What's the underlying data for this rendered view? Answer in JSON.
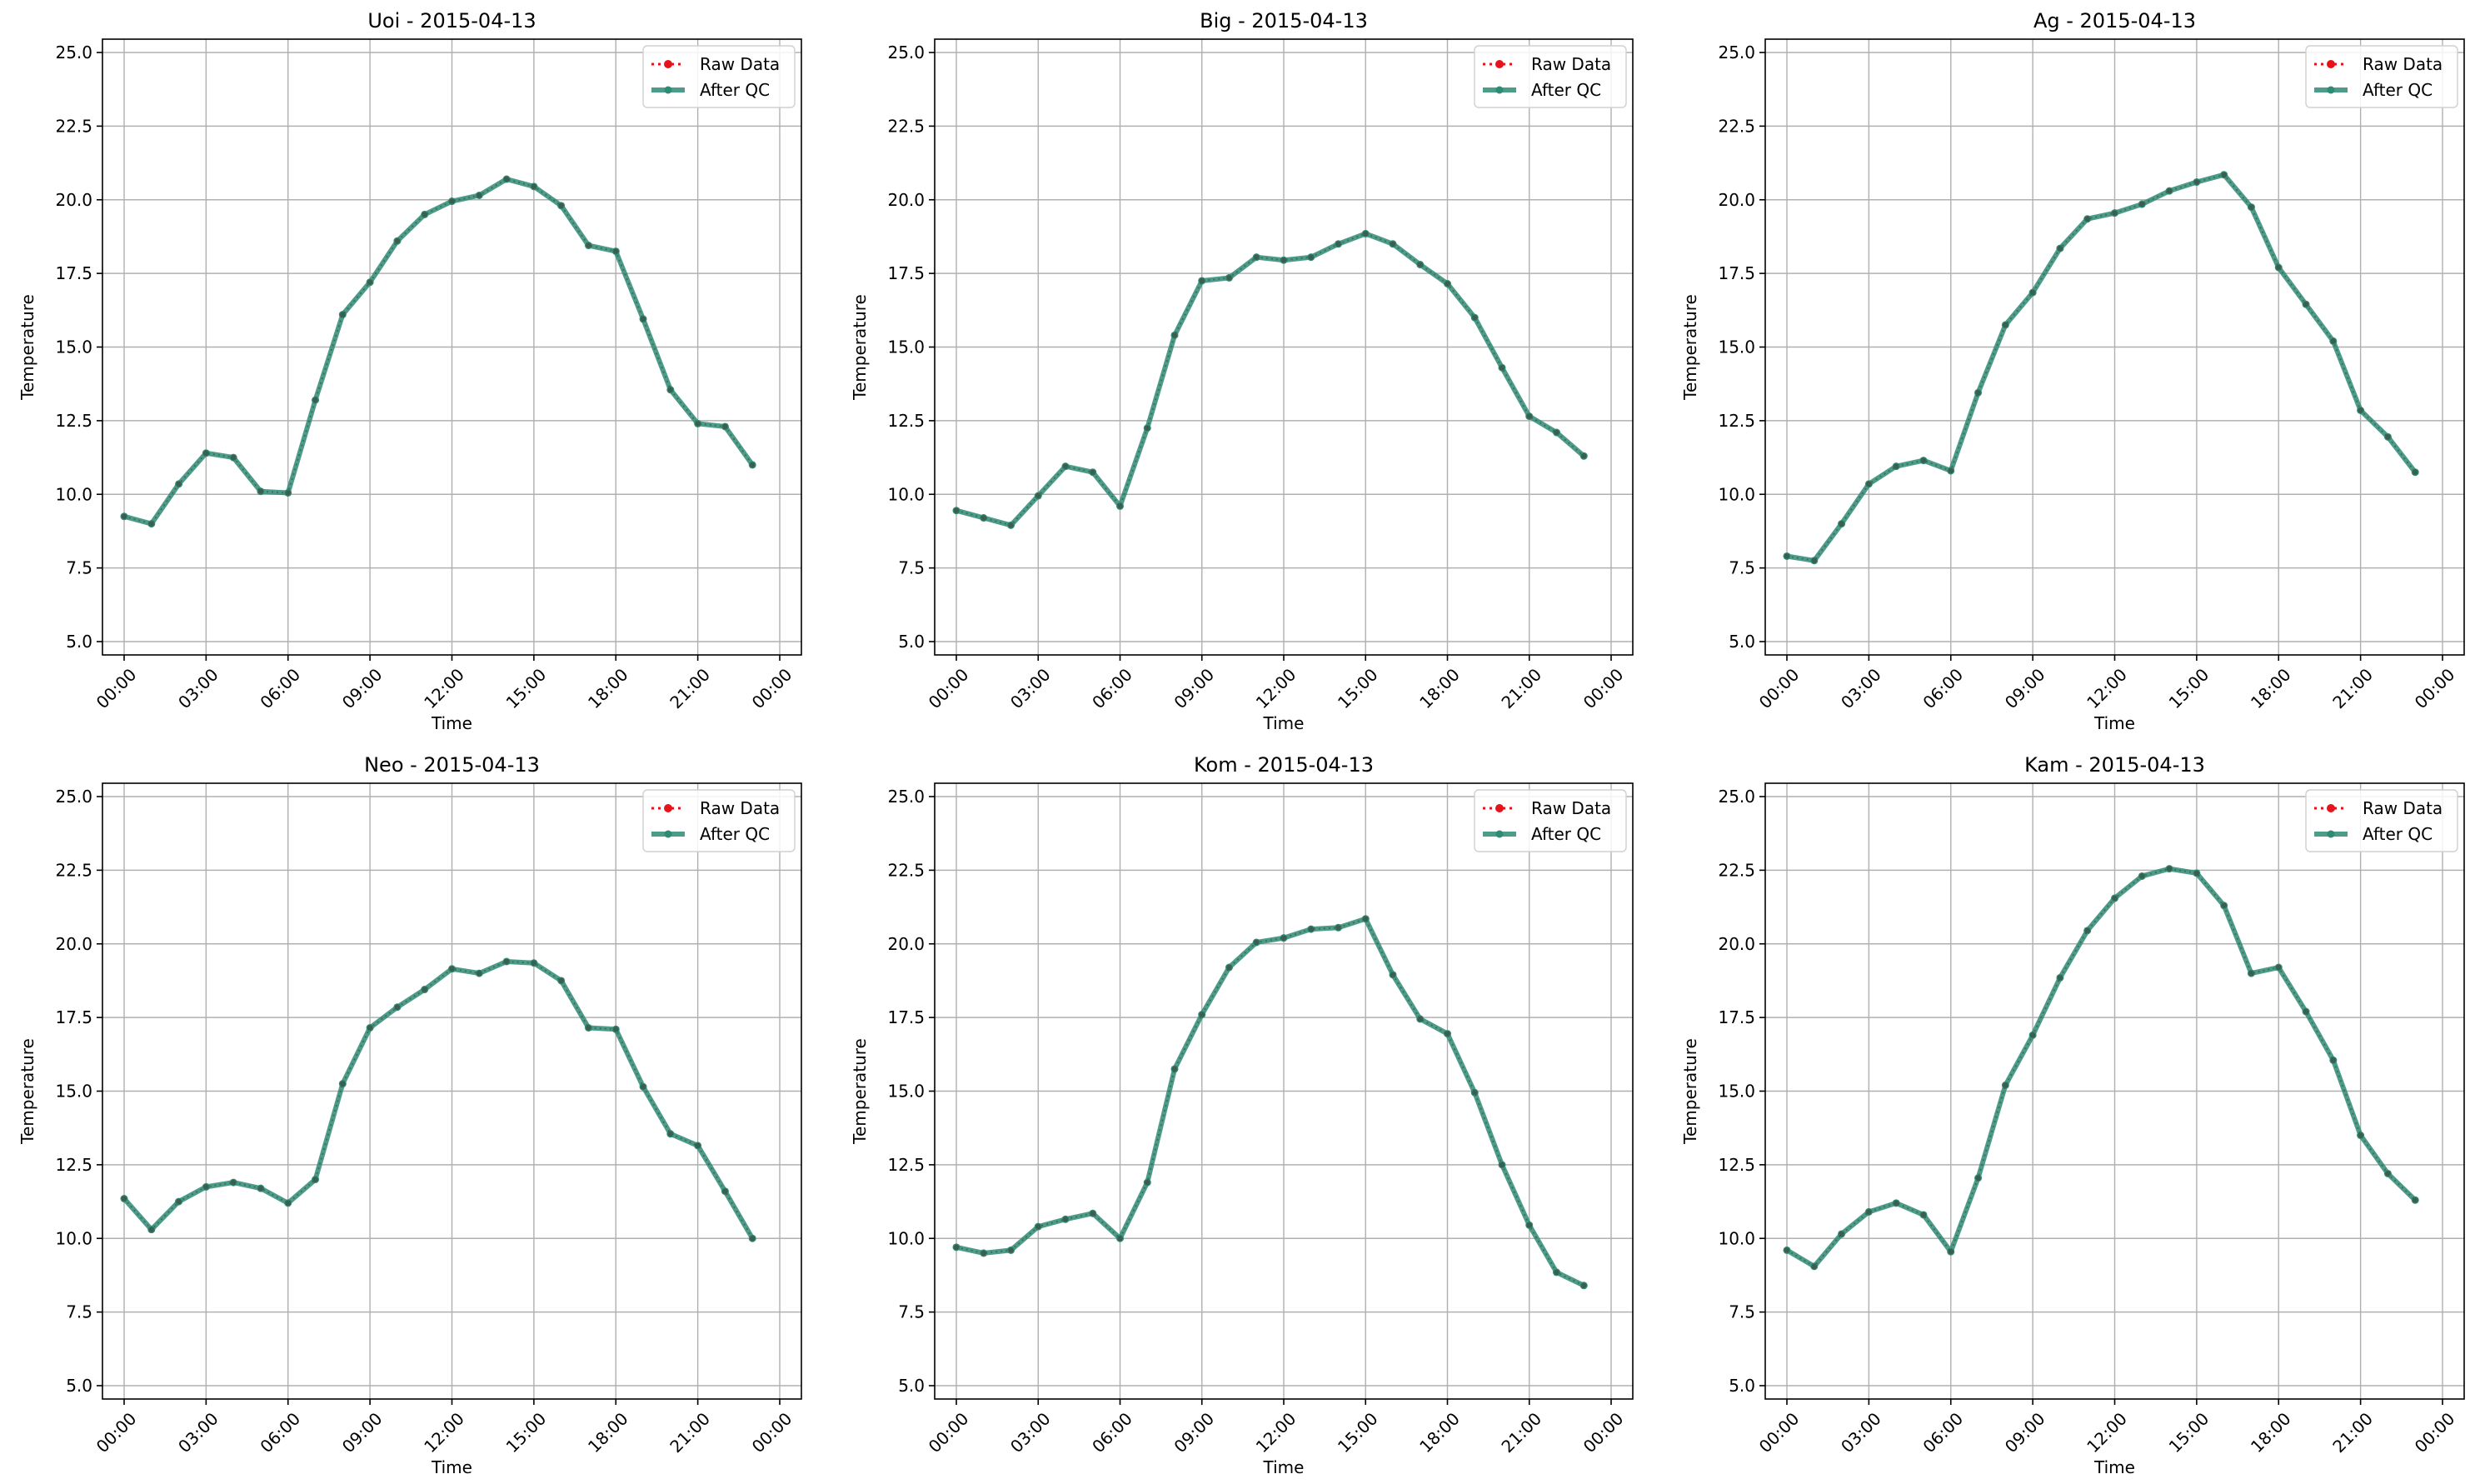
{
  "figure": {
    "xlabel": "Time",
    "ylabel": "Temperature",
    "ylim": [
      5,
      25
    ],
    "yticks": [
      "5.0",
      "7.5",
      "10.0",
      "12.5",
      "15.0",
      "17.5",
      "20.0",
      "22.5",
      "25.0"
    ],
    "xticks": [
      "00:00",
      "03:00",
      "06:00",
      "09:00",
      "12:00",
      "15:00",
      "18:00",
      "21:00",
      "00:00"
    ],
    "legend": {
      "raw": "Raw Data",
      "qc": "After QC",
      "position": "top-right"
    },
    "colors": {
      "raw": "#e8121a",
      "qc": "#2e8b74",
      "grid": "#b0b0b0"
    },
    "grid": true
  },
  "chart_data": [
    {
      "type": "line",
      "title": "Uoi - 2015-04-13",
      "xlabel": "Time",
      "ylabel": "Temperature",
      "ylim": [
        5,
        25
      ],
      "x": [
        "00:00",
        "01:00",
        "02:00",
        "03:00",
        "04:00",
        "05:00",
        "06:00",
        "07:00",
        "08:00",
        "09:00",
        "10:00",
        "11:00",
        "12:00",
        "13:00",
        "14:00",
        "15:00",
        "16:00",
        "17:00",
        "18:00",
        "19:00",
        "20:00",
        "21:00",
        "22:00",
        "23:00"
      ],
      "series": [
        {
          "name": "Raw Data",
          "values": [
            9.25,
            9.0,
            10.35,
            11.4,
            11.25,
            10.1,
            10.05,
            13.2,
            16.1,
            17.2,
            18.6,
            19.5,
            19.95,
            20.15,
            20.7,
            20.45,
            19.8,
            18.45,
            18.25,
            15.95,
            13.55,
            12.4,
            12.3,
            11.0
          ]
        },
        {
          "name": "After QC",
          "values": [
            9.25,
            9.0,
            10.35,
            11.4,
            11.25,
            10.1,
            10.05,
            13.2,
            16.1,
            17.2,
            18.6,
            19.5,
            19.95,
            20.15,
            20.7,
            20.45,
            19.8,
            18.45,
            18.25,
            15.95,
            13.55,
            12.4,
            12.3,
            11.0
          ]
        }
      ]
    },
    {
      "type": "line",
      "title": "Big - 2015-04-13",
      "xlabel": "Time",
      "ylabel": "Temperature",
      "ylim": [
        5,
        25
      ],
      "x": [
        "00:00",
        "01:00",
        "02:00",
        "03:00",
        "04:00",
        "05:00",
        "06:00",
        "07:00",
        "08:00",
        "09:00",
        "10:00",
        "11:00",
        "12:00",
        "13:00",
        "14:00",
        "15:00",
        "16:00",
        "17:00",
        "18:00",
        "19:00",
        "20:00",
        "21:00",
        "22:00",
        "23:00"
      ],
      "series": [
        {
          "name": "Raw Data",
          "values": [
            9.45,
            9.2,
            8.95,
            9.95,
            10.95,
            10.75,
            9.6,
            12.25,
            15.4,
            17.25,
            17.35,
            18.05,
            17.95,
            18.05,
            18.5,
            18.85,
            18.5,
            17.8,
            17.15,
            16.0,
            14.3,
            12.65,
            12.1,
            11.3
          ]
        },
        {
          "name": "After QC",
          "values": [
            9.45,
            9.2,
            8.95,
            9.95,
            10.95,
            10.75,
            9.6,
            12.25,
            15.4,
            17.25,
            17.35,
            18.05,
            17.95,
            18.05,
            18.5,
            18.85,
            18.5,
            17.8,
            17.15,
            16.0,
            14.3,
            12.65,
            12.1,
            11.3
          ]
        }
      ]
    },
    {
      "type": "line",
      "title": "Ag - 2015-04-13",
      "xlabel": "Time",
      "ylabel": "Temperature",
      "ylim": [
        5,
        25
      ],
      "x": [
        "00:00",
        "01:00",
        "02:00",
        "03:00",
        "04:00",
        "05:00",
        "06:00",
        "07:00",
        "08:00",
        "09:00",
        "10:00",
        "11:00",
        "12:00",
        "13:00",
        "14:00",
        "15:00",
        "16:00",
        "17:00",
        "18:00",
        "19:00",
        "20:00",
        "21:00",
        "22:00",
        "23:00"
      ],
      "series": [
        {
          "name": "Raw Data",
          "values": [
            7.9,
            7.75,
            9.0,
            10.35,
            10.95,
            11.15,
            10.8,
            13.45,
            15.75,
            16.85,
            18.35,
            19.35,
            19.55,
            19.85,
            20.3,
            20.6,
            20.85,
            19.75,
            17.7,
            16.45,
            15.2,
            12.85,
            11.95,
            10.75
          ]
        },
        {
          "name": "After QC",
          "values": [
            7.9,
            7.75,
            9.0,
            10.35,
            10.95,
            11.15,
            10.8,
            13.45,
            15.75,
            16.85,
            18.35,
            19.35,
            19.55,
            19.85,
            20.3,
            20.6,
            20.85,
            19.75,
            17.7,
            16.45,
            15.2,
            12.85,
            11.95,
            10.75
          ]
        }
      ]
    },
    {
      "type": "line",
      "title": "Neo - 2015-04-13",
      "xlabel": "Time",
      "ylabel": "Temperature",
      "ylim": [
        5,
        25
      ],
      "x": [
        "00:00",
        "01:00",
        "02:00",
        "03:00",
        "04:00",
        "05:00",
        "06:00",
        "07:00",
        "08:00",
        "09:00",
        "10:00",
        "11:00",
        "12:00",
        "13:00",
        "14:00",
        "15:00",
        "16:00",
        "17:00",
        "18:00",
        "19:00",
        "20:00",
        "21:00",
        "22:00",
        "23:00"
      ],
      "series": [
        {
          "name": "Raw Data",
          "values": [
            11.35,
            10.3,
            11.25,
            11.75,
            11.9,
            11.7,
            11.2,
            12.0,
            15.25,
            17.15,
            17.85,
            18.45,
            19.15,
            19.0,
            19.4,
            19.35,
            18.75,
            17.15,
            17.1,
            15.15,
            13.55,
            13.15,
            11.6,
            10.0
          ]
        },
        {
          "name": "After QC",
          "values": [
            11.35,
            10.3,
            11.25,
            11.75,
            11.9,
            11.7,
            11.2,
            12.0,
            15.25,
            17.15,
            17.85,
            18.45,
            19.15,
            19.0,
            19.4,
            19.35,
            18.75,
            17.15,
            17.1,
            15.15,
            13.55,
            13.15,
            11.6,
            10.0
          ]
        }
      ]
    },
    {
      "type": "line",
      "title": "Kom - 2015-04-13",
      "xlabel": "Time",
      "ylabel": "Temperature",
      "ylim": [
        5,
        25
      ],
      "x": [
        "00:00",
        "01:00",
        "02:00",
        "03:00",
        "04:00",
        "05:00",
        "06:00",
        "07:00",
        "08:00",
        "09:00",
        "10:00",
        "11:00",
        "12:00",
        "13:00",
        "14:00",
        "15:00",
        "16:00",
        "17:00",
        "18:00",
        "19:00",
        "20:00",
        "21:00",
        "22:00",
        "23:00"
      ],
      "series": [
        {
          "name": "Raw Data",
          "values": [
            9.7,
            9.5,
            9.6,
            10.4,
            10.65,
            10.85,
            10.0,
            11.9,
            15.75,
            17.6,
            19.2,
            20.05,
            20.2,
            20.5,
            20.55,
            20.85,
            18.95,
            17.45,
            16.95,
            14.95,
            12.5,
            10.45,
            8.85,
            8.4
          ]
        },
        {
          "name": "After QC",
          "values": [
            9.7,
            9.5,
            9.6,
            10.4,
            10.65,
            10.85,
            10.0,
            11.9,
            15.75,
            17.6,
            19.2,
            20.05,
            20.2,
            20.5,
            20.55,
            20.85,
            18.95,
            17.45,
            16.95,
            14.95,
            12.5,
            10.45,
            8.85,
            8.4
          ]
        }
      ]
    },
    {
      "type": "line",
      "title": "Kam - 2015-04-13",
      "xlabel": "Time",
      "ylabel": "Temperature",
      "ylim": [
        5,
        25
      ],
      "x": [
        "00:00",
        "01:00",
        "02:00",
        "03:00",
        "04:00",
        "05:00",
        "06:00",
        "07:00",
        "08:00",
        "09:00",
        "10:00",
        "11:00",
        "12:00",
        "13:00",
        "14:00",
        "15:00",
        "16:00",
        "17:00",
        "18:00",
        "19:00",
        "20:00",
        "21:00",
        "22:00",
        "23:00"
      ],
      "series": [
        {
          "name": "Raw Data",
          "values": [
            9.6,
            9.05,
            10.15,
            10.9,
            11.2,
            10.8,
            9.55,
            12.05,
            15.2,
            16.9,
            18.85,
            20.45,
            21.55,
            22.3,
            22.55,
            22.4,
            21.3,
            19.0,
            19.2,
            17.7,
            16.05,
            13.5,
            12.2,
            11.3
          ]
        },
        {
          "name": "After QC",
          "values": [
            9.6,
            9.05,
            10.15,
            10.9,
            11.2,
            10.8,
            9.55,
            12.05,
            15.2,
            16.9,
            18.85,
            20.45,
            21.55,
            22.3,
            22.55,
            22.4,
            21.3,
            19.0,
            19.2,
            17.7,
            16.05,
            13.5,
            12.2,
            11.3
          ]
        }
      ]
    }
  ]
}
